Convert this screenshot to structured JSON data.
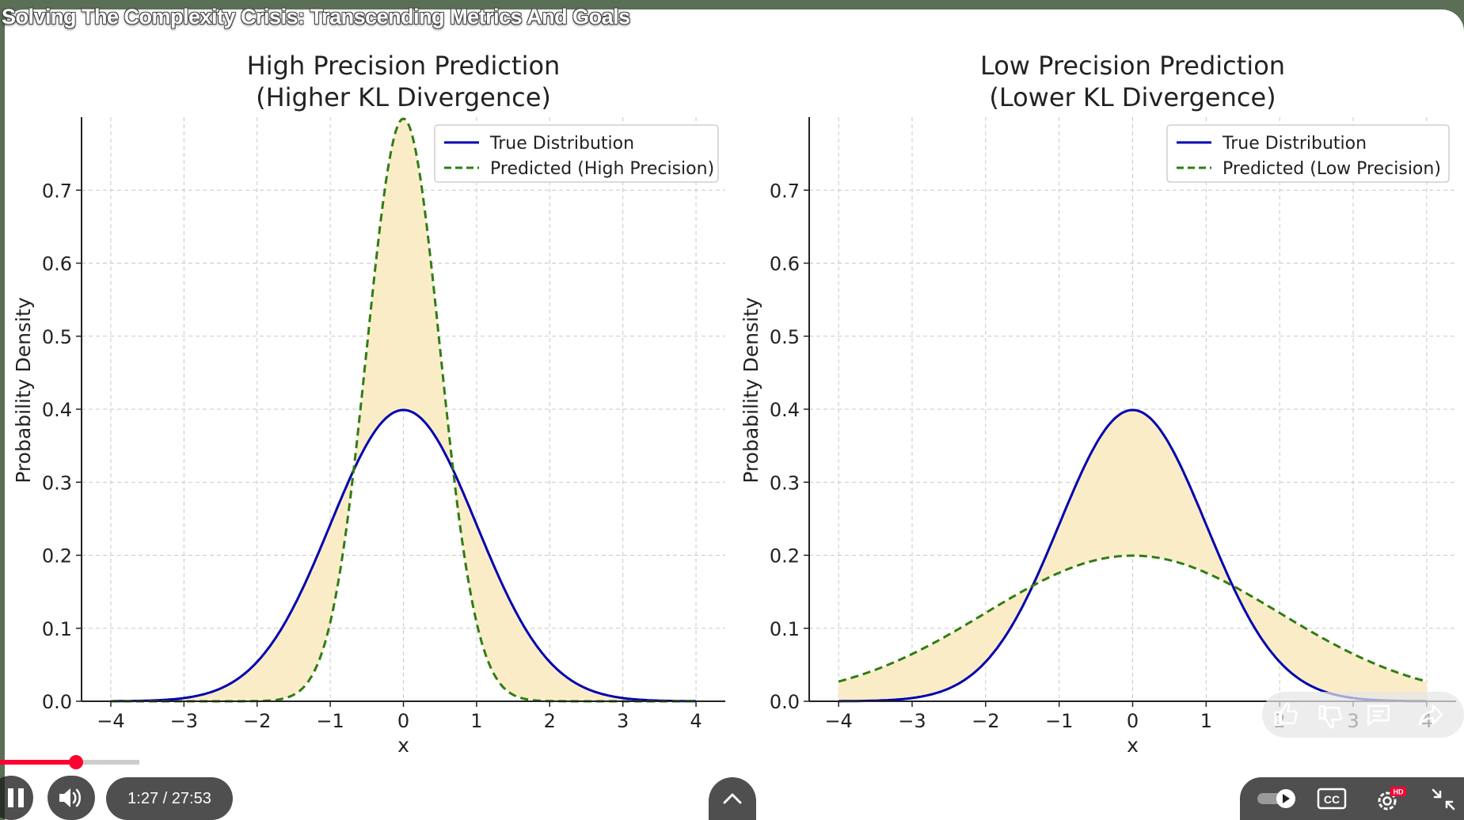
{
  "video": {
    "title": "Solving The Complexity Crisis: Transcending Metrics And Goals",
    "time_display": "1:27 / 27:53",
    "progress_fraction": 0.052,
    "quality_badge": "HD",
    "colors": {
      "progress": "#ff0033",
      "badge": "#ff0033"
    }
  },
  "controls": {
    "icons": [
      "pause-icon",
      "volume-icon",
      "chevron-up-icon",
      "autoplay-toggle-icon",
      "captions-icon",
      "settings-icon",
      "exit-fullscreen-icon",
      "like-icon",
      "dislike-icon",
      "comments-icon",
      "share-icon"
    ],
    "captions_label": "CC"
  },
  "chart_data": [
    {
      "type": "line",
      "title": "High Precision Prediction\n(Higher KL Divergence)",
      "title_lines": [
        "High Precision Prediction",
        "(Higher KL Divergence)"
      ],
      "xlabel": "x",
      "ylabel": "Probability Density",
      "xlim": [
        -4.4,
        4.4
      ],
      "ylim": [
        0,
        0.8
      ],
      "xticks": [
        -4,
        -3,
        -2,
        -1,
        0,
        1,
        2,
        3,
        4
      ],
      "xtick_labels": [
        "−4",
        "−3",
        "−2",
        "−1",
        "0",
        "1",
        "2",
        "3",
        "4"
      ],
      "yticks": [
        0.0,
        0.1,
        0.2,
        0.3,
        0.4,
        0.5,
        0.6,
        0.7
      ],
      "ytick_labels": [
        "0.0",
        "0.1",
        "0.2",
        "0.3",
        "0.4",
        "0.5",
        "0.6",
        "0.7"
      ],
      "grid": true,
      "legend_position": "top-right",
      "fill_between": true,
      "colors": {
        "true": "#0000b0",
        "predicted": "#2e7d12",
        "fill": "#fbecc8"
      },
      "series": [
        {
          "name": "True Distribution",
          "style": "solid",
          "mean": 0,
          "std": 1,
          "x": [
            -4,
            -3,
            -2,
            -1,
            0,
            1,
            2,
            3,
            4
          ],
          "y": [
            0.0001,
            0.0044,
            0.054,
            0.242,
            0.399,
            0.242,
            0.054,
            0.0044,
            0.0001
          ]
        },
        {
          "name": "Predicted (High Precision)",
          "style": "dashed",
          "mean": 0,
          "std": 0.5,
          "x": [
            -2,
            -1.5,
            -1,
            -0.5,
            0,
            0.5,
            1,
            1.5,
            2
          ],
          "y": [
            0.0003,
            0.0089,
            0.108,
            0.484,
            0.798,
            0.484,
            0.108,
            0.0089,
            0.0003
          ]
        }
      ]
    },
    {
      "type": "line",
      "title": "Low Precision Prediction\n(Lower KL Divergence)",
      "title_lines": [
        "Low Precision Prediction",
        "(Lower KL Divergence)"
      ],
      "xlabel": "x",
      "ylabel": "Probability Density",
      "xlim": [
        -4.4,
        4.4
      ],
      "ylim": [
        0,
        0.8
      ],
      "xticks": [
        -4,
        -3,
        -2,
        -1,
        0,
        1,
        2,
        3,
        4
      ],
      "xtick_labels": [
        "−4",
        "−3",
        "−2",
        "−1",
        "0",
        "1",
        "2",
        "3",
        "4"
      ],
      "yticks": [
        0.0,
        0.1,
        0.2,
        0.3,
        0.4,
        0.5,
        0.6,
        0.7
      ],
      "ytick_labels": [
        "0.0",
        "0.1",
        "0.2",
        "0.3",
        "0.4",
        "0.5",
        "0.6",
        "0.7"
      ],
      "grid": true,
      "legend_position": "top-right",
      "fill_between": true,
      "colors": {
        "true": "#0000b0",
        "predicted": "#2e7d12",
        "fill": "#fbecc8"
      },
      "series": [
        {
          "name": "True Distribution",
          "style": "solid",
          "mean": 0,
          "std": 1,
          "x": [
            -4,
            -3,
            -2,
            -1,
            0,
            1,
            2,
            3,
            4
          ],
          "y": [
            0.0001,
            0.0044,
            0.054,
            0.242,
            0.399,
            0.242,
            0.054,
            0.0044,
            0.0001
          ]
        },
        {
          "name": "Predicted (Low Precision)",
          "style": "dashed",
          "mean": 0,
          "std": 2,
          "x": [
            -4,
            -3,
            -2,
            -1,
            0,
            1,
            2,
            3,
            4
          ],
          "y": [
            0.027,
            0.065,
            0.121,
            0.176,
            0.199,
            0.176,
            0.121,
            0.065,
            0.027
          ]
        }
      ]
    }
  ]
}
